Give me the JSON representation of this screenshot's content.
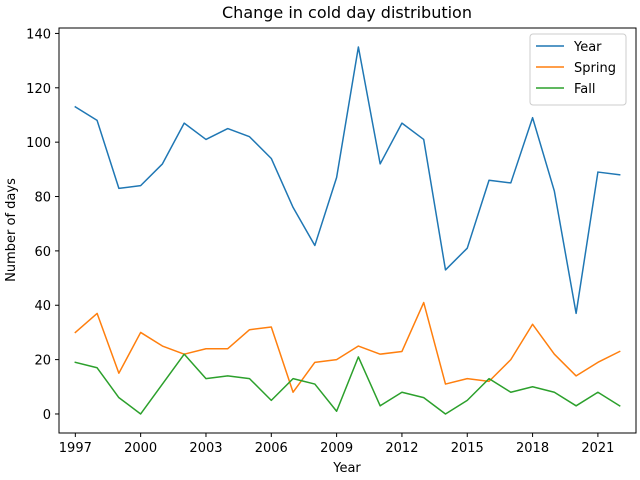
{
  "chart_data": {
    "type": "line",
    "title": "Change in cold day distribution",
    "xlabel": "Year",
    "ylabel": "Number of days",
    "xlim": [
      1996.25,
      2022.75
    ],
    "ylim": [
      -7,
      142
    ],
    "xticks": [
      1997,
      2000,
      2003,
      2006,
      2009,
      2012,
      2015,
      2018,
      2021
    ],
    "yticks": [
      0,
      20,
      40,
      60,
      80,
      100,
      120,
      140
    ],
    "legend_position": "top-right",
    "grid": false,
    "x": [
      1997,
      1998,
      1999,
      2000,
      2001,
      2002,
      2003,
      2004,
      2005,
      2006,
      2007,
      2008,
      2009,
      2010,
      2011,
      2012,
      2013,
      2014,
      2015,
      2016,
      2017,
      2018,
      2019,
      2020,
      2021,
      2022
    ],
    "series": [
      {
        "name": "Year",
        "color": "#1f77b4",
        "values": [
          113,
          108,
          83,
          84,
          92,
          107,
          101,
          105,
          102,
          94,
          76,
          62,
          87,
          135,
          92,
          107,
          101,
          53,
          61,
          86,
          85,
          109,
          82,
          37,
          89,
          88
        ]
      },
      {
        "name": "Spring",
        "color": "#ff7f0e",
        "values": [
          30,
          37,
          15,
          30,
          25,
          22,
          24,
          24,
          31,
          32,
          8,
          19,
          20,
          25,
          22,
          23,
          41,
          11,
          13,
          12,
          20,
          33,
          22,
          14,
          19,
          23
        ]
      },
      {
        "name": "Fall",
        "color": "#2ca02c",
        "values": [
          19,
          17,
          6,
          0,
          11,
          22,
          13,
          14,
          13,
          5,
          13,
          11,
          1,
          21,
          3,
          8,
          6,
          0,
          5,
          13,
          8,
          10,
          8,
          3,
          8,
          3
        ]
      }
    ]
  }
}
